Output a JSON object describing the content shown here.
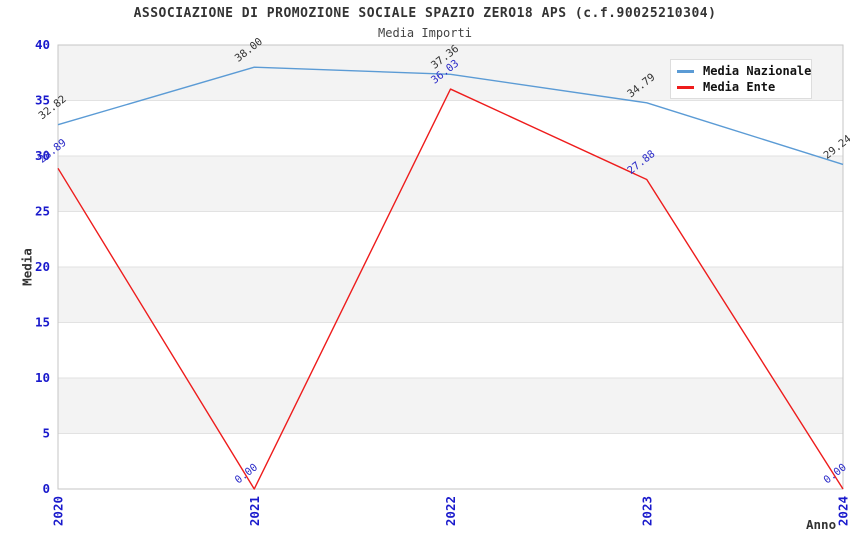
{
  "header": {
    "title": "ASSOCIAZIONE DI PROMOZIONE SOCIALE SPAZIO ZERO18 APS (c.f.90025210304)",
    "subtitle": "Media Importi"
  },
  "legend": {
    "items": [
      {
        "label": "Media Nazionale",
        "color": "#5b9bd5"
      },
      {
        "label": "Media Ente",
        "color": "#ee1c1c"
      }
    ]
  },
  "axes": {
    "y_label": "Media",
    "x_label": "Anno",
    "tick_color": "#1a1acc"
  },
  "chart_data": {
    "type": "line",
    "title": "ASSOCIAZIONE DI PROMOZIONE SOCIALE SPAZIO ZERO18 APS (c.f.90025210304)",
    "subtitle": "Media Importi",
    "xlabel": "Anno",
    "ylabel": "Media",
    "x": [
      "2020",
      "2021",
      "2022",
      "2023",
      "2024"
    ],
    "series": [
      {
        "name": "Media Nazionale",
        "color": "#5b9bd5",
        "label_color": "#333333",
        "values": [
          32.82,
          38.0,
          37.36,
          34.79,
          29.24
        ]
      },
      {
        "name": "Media Ente",
        "color": "#ee1c1c",
        "label_color": "#2b2bc8",
        "values": [
          28.89,
          0.0,
          36.03,
          27.88,
          0.0
        ]
      }
    ],
    "ylim": [
      0,
      40
    ],
    "yticks": [
      0,
      5,
      10,
      15,
      20,
      25,
      30,
      35,
      40
    ],
    "grid": "horizontal-bands",
    "band_colors": [
      "#f3f3f3",
      "#ffffff"
    ],
    "gridline_color": "#e2e2e2",
    "plot_border_color": "#c6c6c6",
    "legend_position": "top-right",
    "point_labels_decimals": 2
  }
}
